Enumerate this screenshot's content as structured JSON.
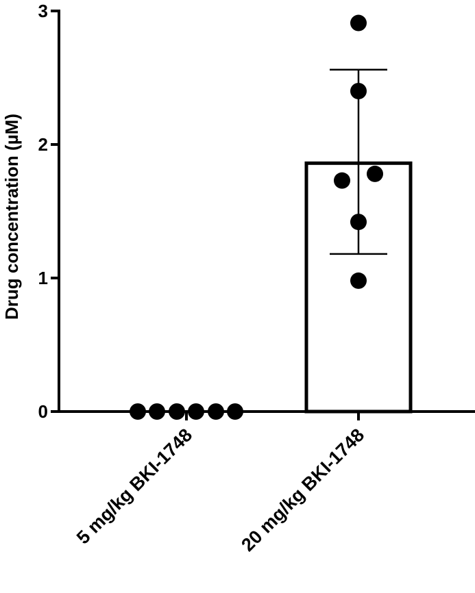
{
  "chart_data": {
    "type": "bar",
    "title": "",
    "xlabel": "",
    "ylabel": "Drug concentration (µM)",
    "ylim": [
      0,
      3
    ],
    "yticks": [
      "0",
      "1",
      "2",
      "3"
    ],
    "categories": [
      "5 mg/kg BKI-1748",
      "20 mg/kg BKI-1748"
    ],
    "means": [
      0,
      1.86
    ],
    "error_bars": [
      null,
      {
        "low": 1.18,
        "high": 2.56
      }
    ],
    "points": [
      [
        0,
        0,
        0,
        0,
        0,
        0
      ],
      [
        2.91,
        2.4,
        1.73,
        1.78,
        1.42,
        0.98
      ]
    ],
    "grid": false,
    "legend": "none",
    "colors": {
      "bar_fill": "#ffffff",
      "bar_stroke": "#000000",
      "point": "#000000"
    }
  }
}
